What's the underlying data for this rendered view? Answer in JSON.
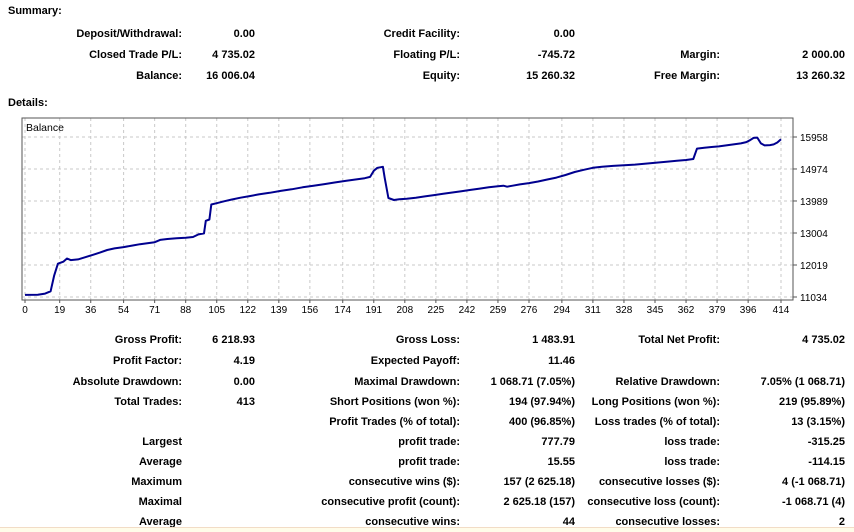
{
  "summary": {
    "title": "Summary:",
    "rows": [
      [
        "Deposit/Withdrawal:",
        "0.00",
        "Credit Facility:",
        "0.00",
        "",
        ""
      ],
      [
        "Closed Trade P/L:",
        "4 735.02",
        "Floating P/L:",
        "-745.72",
        "Margin:",
        "2 000.00"
      ],
      [
        "Balance:",
        "16 006.04",
        "Equity:",
        "15 260.32",
        "Free Margin:",
        "13 260.32"
      ]
    ]
  },
  "details": {
    "title": "Details:"
  },
  "chart_data": {
    "type": "line",
    "title": "Balance",
    "xlabel": "",
    "ylabel": "",
    "xlim": [
      0,
      414
    ],
    "ylim": [
      11034,
      15958
    ],
    "grid": true,
    "legend_position": "inside-top-left",
    "x_ticks": [
      0,
      19,
      36,
      54,
      71,
      88,
      105,
      122,
      139,
      156,
      174,
      191,
      208,
      225,
      242,
      259,
      276,
      294,
      311,
      328,
      345,
      362,
      379,
      396,
      414
    ],
    "y_ticks": [
      15958,
      14974,
      13989,
      13004,
      12019,
      11034
    ],
    "colors": {
      "line": "#00008f",
      "grid": "#c9c9c9",
      "axis": "#555555"
    },
    "series": [
      {
        "name": "Balance",
        "points": [
          [
            0,
            11100
          ],
          [
            7,
            11105
          ],
          [
            11,
            11140
          ],
          [
            14,
            11210
          ],
          [
            16,
            11700
          ],
          [
            18,
            12060
          ],
          [
            21,
            12120
          ],
          [
            23,
            12220
          ],
          [
            25,
            12170
          ],
          [
            29,
            12190
          ],
          [
            33,
            12260
          ],
          [
            37,
            12330
          ],
          [
            41,
            12400
          ],
          [
            45,
            12480
          ],
          [
            49,
            12530
          ],
          [
            54,
            12570
          ],
          [
            59,
            12620
          ],
          [
            63,
            12660
          ],
          [
            67,
            12690
          ],
          [
            71,
            12720
          ],
          [
            74,
            12790
          ],
          [
            78,
            12820
          ],
          [
            83,
            12840
          ],
          [
            88,
            12860
          ],
          [
            92,
            12880
          ],
          [
            95,
            12960
          ],
          [
            98,
            12990
          ],
          [
            99,
            13380
          ],
          [
            101,
            13420
          ],
          [
            102,
            13880
          ],
          [
            105,
            13920
          ],
          [
            109,
            13980
          ],
          [
            113,
            14030
          ],
          [
            118,
            14090
          ],
          [
            123,
            14140
          ],
          [
            128,
            14190
          ],
          [
            134,
            14240
          ],
          [
            140,
            14300
          ],
          [
            146,
            14350
          ],
          [
            152,
            14410
          ],
          [
            158,
            14460
          ],
          [
            164,
            14510
          ],
          [
            170,
            14560
          ],
          [
            176,
            14610
          ],
          [
            181,
            14650
          ],
          [
            186,
            14690
          ],
          [
            189,
            14730
          ],
          [
            191,
            14920
          ],
          [
            193,
            15010
          ],
          [
            196,
            15040
          ],
          [
            197,
            14700
          ],
          [
            199,
            14080
          ],
          [
            202,
            14020
          ],
          [
            205,
            14040
          ],
          [
            209,
            14060
          ],
          [
            214,
            14090
          ],
          [
            219,
            14130
          ],
          [
            224,
            14170
          ],
          [
            229,
            14210
          ],
          [
            234,
            14250
          ],
          [
            239,
            14290
          ],
          [
            244,
            14330
          ],
          [
            249,
            14370
          ],
          [
            254,
            14410
          ],
          [
            259,
            14440
          ],
          [
            262,
            14460
          ],
          [
            264,
            14430
          ],
          [
            267,
            14460
          ],
          [
            271,
            14500
          ],
          [
            276,
            14540
          ],
          [
            281,
            14590
          ],
          [
            286,
            14650
          ],
          [
            291,
            14710
          ],
          [
            296,
            14790
          ],
          [
            301,
            14880
          ],
          [
            306,
            14950
          ],
          [
            311,
            15010
          ],
          [
            316,
            15040
          ],
          [
            322,
            15070
          ],
          [
            328,
            15090
          ],
          [
            334,
            15110
          ],
          [
            340,
            15140
          ],
          [
            346,
            15170
          ],
          [
            352,
            15200
          ],
          [
            357,
            15230
          ],
          [
            362,
            15250
          ],
          [
            366,
            15280
          ],
          [
            368,
            15600
          ],
          [
            372,
            15630
          ],
          [
            376,
            15650
          ],
          [
            380,
            15670
          ],
          [
            384,
            15700
          ],
          [
            388,
            15730
          ],
          [
            392,
            15760
          ],
          [
            395,
            15800
          ],
          [
            397,
            15860
          ],
          [
            399,
            15930
          ],
          [
            401,
            15940
          ],
          [
            403,
            15760
          ],
          [
            405,
            15700
          ],
          [
            408,
            15710
          ],
          [
            410,
            15730
          ],
          [
            412,
            15790
          ],
          [
            414,
            15890
          ]
        ]
      }
    ]
  },
  "stats": {
    "rows_a": [
      [
        "Gross Profit:",
        "6 218.93",
        "Gross Loss:",
        "1 483.91",
        "Total Net Profit:",
        "4 735.02"
      ],
      [
        "Profit Factor:",
        "4.19",
        "Expected Payoff:",
        "11.46",
        "",
        ""
      ],
      [
        "Absolute Drawdown:",
        "0.00",
        "Maximal Drawdown:",
        "1 068.71 (7.05%)",
        "Relative Drawdown:",
        "7.05% (1 068.71)"
      ]
    ],
    "rows_b": [
      [
        "Total Trades:",
        "413",
        "Short Positions (won %):",
        "194 (97.94%)",
        "Long Positions (won %):",
        "219 (95.89%)"
      ],
      [
        "",
        "",
        "Profit Trades (% of total):",
        "400 (96.85%)",
        "Loss trades (% of total):",
        "13 (3.15%)"
      ],
      [
        "Largest",
        "",
        "profit trade:",
        "777.79",
        "loss trade:",
        "-315.25"
      ],
      [
        "Average",
        "",
        "profit trade:",
        "15.55",
        "loss trade:",
        "-114.15"
      ],
      [
        "Maximum",
        "",
        "consecutive wins ($):",
        "157 (2 625.18)",
        "consecutive losses ($):",
        "4 (-1 068.71)"
      ],
      [
        "Maximal",
        "",
        "consecutive profit (count):",
        "2 625.18 (157)",
        "consecutive loss (count):",
        "-1 068.71 (4)"
      ],
      [
        "Average",
        "",
        "consecutive wins:",
        "44",
        "consecutive losses:",
        "2"
      ]
    ]
  }
}
